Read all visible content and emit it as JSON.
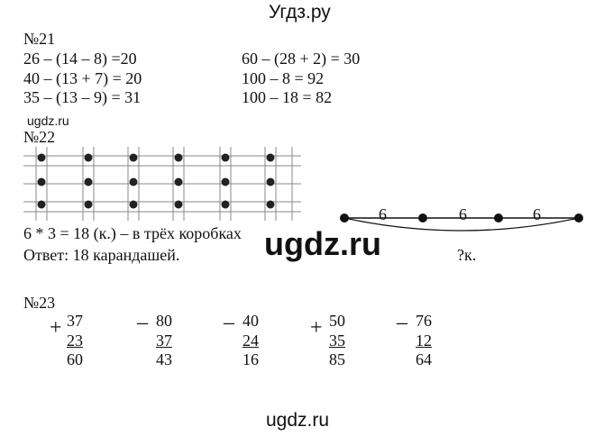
{
  "site_title": "Угдз.ру",
  "watermark_small": "ugdz.ru",
  "watermark_big": "ugdz.ru",
  "watermark_bottom": "ugdz.ru",
  "task21": {
    "label": "№21",
    "left": [
      "26 – (14 – 8) =20",
      "40 – (13 + 7) = 20",
      "35 – (13 – 9) = 31"
    ],
    "right": [
      "60 – (28 + 2) = 30",
      "100 – 8 = 92",
      "100 – 18 = 82"
    ]
  },
  "task22": {
    "label": "№22",
    "equation": "6 * 3 = 18 (к.) – в трёх коробках",
    "answer": "Ответ: 18 карандашей.",
    "segments": [
      "6",
      "6",
      "6"
    ],
    "total": "?к."
  },
  "task23": {
    "label": "№23",
    "columns": [
      {
        "op": "+",
        "a": "37",
        "b": "23",
        "r": "60"
      },
      {
        "op": "–",
        "a": "80",
        "b": "37",
        "r": "43"
      },
      {
        "op": "–",
        "a": "40",
        "b": "24",
        "r": "16"
      },
      {
        "op": "+",
        "a": "50",
        "b": "35",
        "r": "85"
      },
      {
        "op": "–",
        "a": "76",
        "b": "12",
        "r": "64"
      }
    ]
  }
}
